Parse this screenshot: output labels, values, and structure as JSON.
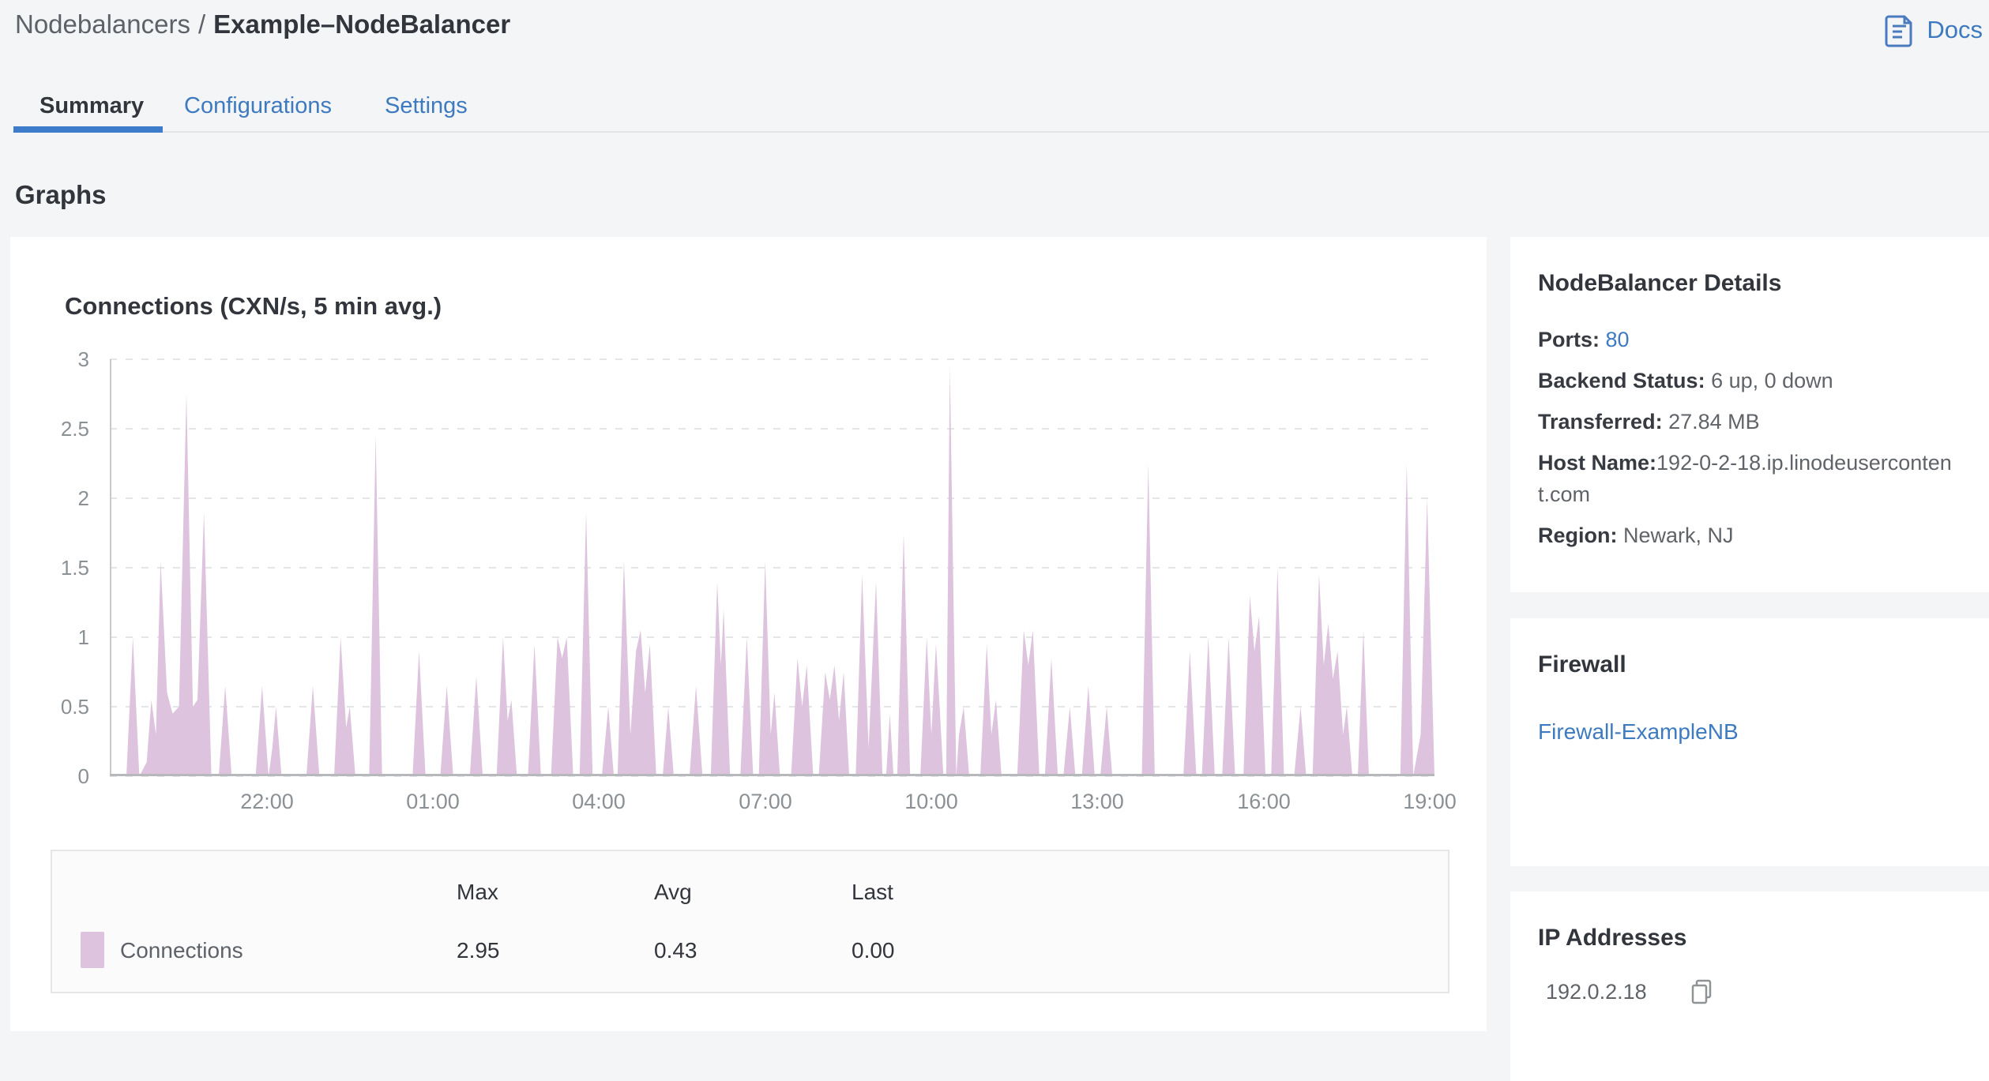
{
  "breadcrumb": {
    "parent": "Nodebalancers",
    "separator": "/",
    "current": "Example–NodeBalancer"
  },
  "docs": {
    "label": "Docs"
  },
  "tabs": [
    {
      "label": "Summary",
      "active": true
    },
    {
      "label": "Configurations",
      "active": false
    },
    {
      "label": "Settings",
      "active": false
    }
  ],
  "page_heading": "Graphs",
  "chart_data": {
    "type": "area",
    "title": "Connections (CXN/s, 5 min avg.)",
    "ylabel": "",
    "xlabel": "",
    "ylim": [
      0,
      3
    ],
    "grid": "horizontal dashed",
    "legend_position": "table below chart",
    "x_window_minutes": 1435,
    "x_window_note": "24h window ending 19:00",
    "y_ticks": [
      {
        "value": 0,
        "label": "0"
      },
      {
        "value": 0.5,
        "label": "0.5"
      },
      {
        "value": 1,
        "label": "1"
      },
      {
        "value": 1.5,
        "label": "1.5"
      },
      {
        "value": 2,
        "label": "2"
      },
      {
        "value": 2.5,
        "label": "2.5"
      },
      {
        "value": 3,
        "label": "3"
      }
    ],
    "x_ticks": [
      {
        "minute": 170,
        "label": "22:00"
      },
      {
        "minute": 350,
        "label": "01:00"
      },
      {
        "minute": 530,
        "label": "04:00"
      },
      {
        "minute": 710,
        "label": "07:00"
      },
      {
        "minute": 890,
        "label": "10:00"
      },
      {
        "minute": 1070,
        "label": "13:00"
      },
      {
        "minute": 1250,
        "label": "16:00"
      },
      {
        "minute": 1430,
        "label": "19:00"
      }
    ],
    "series": [
      {
        "name": "Connections",
        "color": "#ddc3de",
        "points": [
          [
            0,
            0
          ],
          [
            18,
            0
          ],
          [
            25,
            1.0
          ],
          [
            32,
            0
          ],
          [
            40,
            0.1
          ],
          [
            45,
            0.55
          ],
          [
            50,
            0.3
          ],
          [
            55,
            1.55
          ],
          [
            62,
            0.6
          ],
          [
            68,
            0.45
          ],
          [
            75,
            0.5
          ],
          [
            83,
            2.75
          ],
          [
            90,
            0.5
          ],
          [
            95,
            0.55
          ],
          [
            102,
            1.9
          ],
          [
            110,
            0
          ],
          [
            118,
            0
          ],
          [
            125,
            0.65
          ],
          [
            132,
            0
          ],
          [
            158,
            0
          ],
          [
            165,
            0.65
          ],
          [
            172,
            0
          ],
          [
            176,
            0.2
          ],
          [
            180,
            0.5
          ],
          [
            186,
            0
          ],
          [
            213,
            0
          ],
          [
            220,
            0.65
          ],
          [
            227,
            0
          ],
          [
            243,
            0
          ],
          [
            250,
            1.0
          ],
          [
            256,
            0.35
          ],
          [
            260,
            0.5
          ],
          [
            266,
            0
          ],
          [
            281,
            0
          ],
          [
            288,
            2.45
          ],
          [
            295,
            0
          ],
          [
            328,
            0
          ],
          [
            335,
            0.9
          ],
          [
            342,
            0
          ],
          [
            358,
            0
          ],
          [
            365,
            0.65
          ],
          [
            372,
            0
          ],
          [
            390,
            0
          ],
          [
            397,
            0.72
          ],
          [
            404,
            0
          ],
          [
            419,
            0
          ],
          [
            426,
            1.0
          ],
          [
            431,
            0.4
          ],
          [
            435,
            0.55
          ],
          [
            441,
            0
          ],
          [
            453,
            0
          ],
          [
            460,
            0.95
          ],
          [
            467,
            0
          ],
          [
            478,
            0
          ],
          [
            485,
            1.0
          ],
          [
            490,
            0.85
          ],
          [
            495,
            1.0
          ],
          [
            502,
            0
          ],
          [
            509,
            0
          ],
          [
            516,
            1.9
          ],
          [
            523,
            0
          ],
          [
            533,
            0
          ],
          [
            540,
            0.5
          ],
          [
            546,
            0
          ],
          [
            550,
            0
          ],
          [
            557,
            1.55
          ],
          [
            564,
            0.3
          ],
          [
            570,
            0.9
          ],
          [
            575,
            1.05
          ],
          [
            580,
            0.6
          ],
          [
            585,
            0.95
          ],
          [
            592,
            0
          ],
          [
            599,
            0
          ],
          [
            605,
            0.5
          ],
          [
            611,
            0
          ],
          [
            628,
            0
          ],
          [
            635,
            0.65
          ],
          [
            642,
            0
          ],
          [
            651,
            0
          ],
          [
            658,
            1.4
          ],
          [
            662,
            0.8
          ],
          [
            665,
            1.2
          ],
          [
            672,
            0
          ],
          [
            683,
            0
          ],
          [
            690,
            1.0
          ],
          [
            697,
            0
          ],
          [
            703,
            0
          ],
          [
            710,
            1.55
          ],
          [
            716,
            0.3
          ],
          [
            720,
            0.6
          ],
          [
            726,
            0
          ],
          [
            738,
            0
          ],
          [
            745,
            0.85
          ],
          [
            750,
            0.5
          ],
          [
            755,
            0.8
          ],
          [
            762,
            0
          ],
          [
            768,
            0
          ],
          [
            775,
            0.75
          ],
          [
            780,
            0.55
          ],
          [
            785,
            0.8
          ],
          [
            790,
            0.4
          ],
          [
            795,
            0.75
          ],
          [
            801,
            0
          ],
          [
            808,
            0
          ],
          [
            815,
            1.45
          ],
          [
            822,
            0.2
          ],
          [
            830,
            1.4
          ],
          [
            837,
            0
          ],
          [
            841,
            0
          ],
          [
            845,
            0.45
          ],
          [
            849,
            0
          ],
          [
            853,
            0
          ],
          [
            860,
            1.75
          ],
          [
            867,
            0
          ],
          [
            878,
            0
          ],
          [
            885,
            1.0
          ],
          [
            890,
            0.3
          ],
          [
            895,
            0.95
          ],
          [
            899,
            0.5
          ],
          [
            903,
            0
          ],
          [
            906,
            0
          ],
          [
            910,
            2.95
          ],
          [
            917,
            0
          ],
          [
            920,
            0.3
          ],
          [
            925,
            0.5
          ],
          [
            931,
            0
          ],
          [
            943,
            0
          ],
          [
            950,
            0.95
          ],
          [
            955,
            0.3
          ],
          [
            960,
            0.55
          ],
          [
            966,
            0
          ],
          [
            983,
            0
          ],
          [
            990,
            1.05
          ],
          [
            995,
            0.8
          ],
          [
            1000,
            1.05
          ],
          [
            1007,
            0
          ],
          [
            1013,
            0
          ],
          [
            1020,
            0.85
          ],
          [
            1027,
            0
          ],
          [
            1033,
            0
          ],
          [
            1040,
            0.5
          ],
          [
            1046,
            0
          ],
          [
            1053,
            0
          ],
          [
            1060,
            0.65
          ],
          [
            1067,
            0
          ],
          [
            1073,
            0
          ],
          [
            1080,
            0.5
          ],
          [
            1086,
            0
          ],
          [
            1118,
            0
          ],
          [
            1125,
            2.25
          ],
          [
            1132,
            0
          ],
          [
            1163,
            0
          ],
          [
            1170,
            0.9
          ],
          [
            1177,
            0
          ],
          [
            1183,
            0
          ],
          [
            1190,
            1.0
          ],
          [
            1197,
            0
          ],
          [
            1205,
            0
          ],
          [
            1212,
            1.0
          ],
          [
            1219,
            0
          ],
          [
            1228,
            0
          ],
          [
            1235,
            1.3
          ],
          [
            1240,
            0.9
          ],
          [
            1245,
            1.15
          ],
          [
            1252,
            0
          ],
          [
            1258,
            0
          ],
          [
            1265,
            1.5
          ],
          [
            1272,
            0
          ],
          [
            1283,
            0
          ],
          [
            1290,
            0.5
          ],
          [
            1296,
            0
          ],
          [
            1303,
            0
          ],
          [
            1310,
            1.45
          ],
          [
            1315,
            0.8
          ],
          [
            1320,
            1.1
          ],
          [
            1325,
            0.7
          ],
          [
            1330,
            0.9
          ],
          [
            1336,
            0.3
          ],
          [
            1340,
            0.5
          ],
          [
            1346,
            0
          ],
          [
            1352,
            0
          ],
          [
            1358,
            1.05
          ],
          [
            1364,
            0
          ],
          [
            1398,
            0
          ],
          [
            1405,
            2.25
          ],
          [
            1412,
            0
          ],
          [
            1420,
            0.3
          ],
          [
            1427,
            2.0
          ],
          [
            1435,
            0
          ]
        ]
      }
    ],
    "stats": {
      "max": 2.95,
      "avg": 0.43,
      "last": 0.0
    }
  },
  "legend_table": {
    "headers": [
      "Max",
      "Avg",
      "Last"
    ],
    "rows": [
      {
        "name": "Connections",
        "swatch_color": "#ddc3de",
        "max": "2.95",
        "avg": "0.43",
        "last": "0.00"
      }
    ]
  },
  "details_panel": {
    "title": "NodeBalancer Details",
    "ports_label": "Ports:",
    "ports_value": "80",
    "backend_label": "Backend Status:",
    "backend_value": "6 up, 0 down",
    "transferred_label": "Transferred:",
    "transferred_value": "27.84 MB",
    "hostname_label": "Host Name:",
    "hostname_value": "192-0-2-18.ip.linodeusercontent.com",
    "region_label": "Region:",
    "region_value": "Newark, NJ"
  },
  "firewall_panel": {
    "title": "Firewall",
    "link": "Firewall-ExampleNB"
  },
  "ip_panel": {
    "title": "IP Addresses",
    "ip": "192.0.2.18"
  },
  "colors": {
    "accent_blue": "#3d7ac0",
    "tab_indicator": "#3c7ccb",
    "area_fill": "#ddc3de",
    "page_background": "#f4f5f6",
    "card_background": "#ffffff",
    "text_dark": "#32363c",
    "text_secondary": "#606469",
    "tick_gray": "#8b9095"
  }
}
